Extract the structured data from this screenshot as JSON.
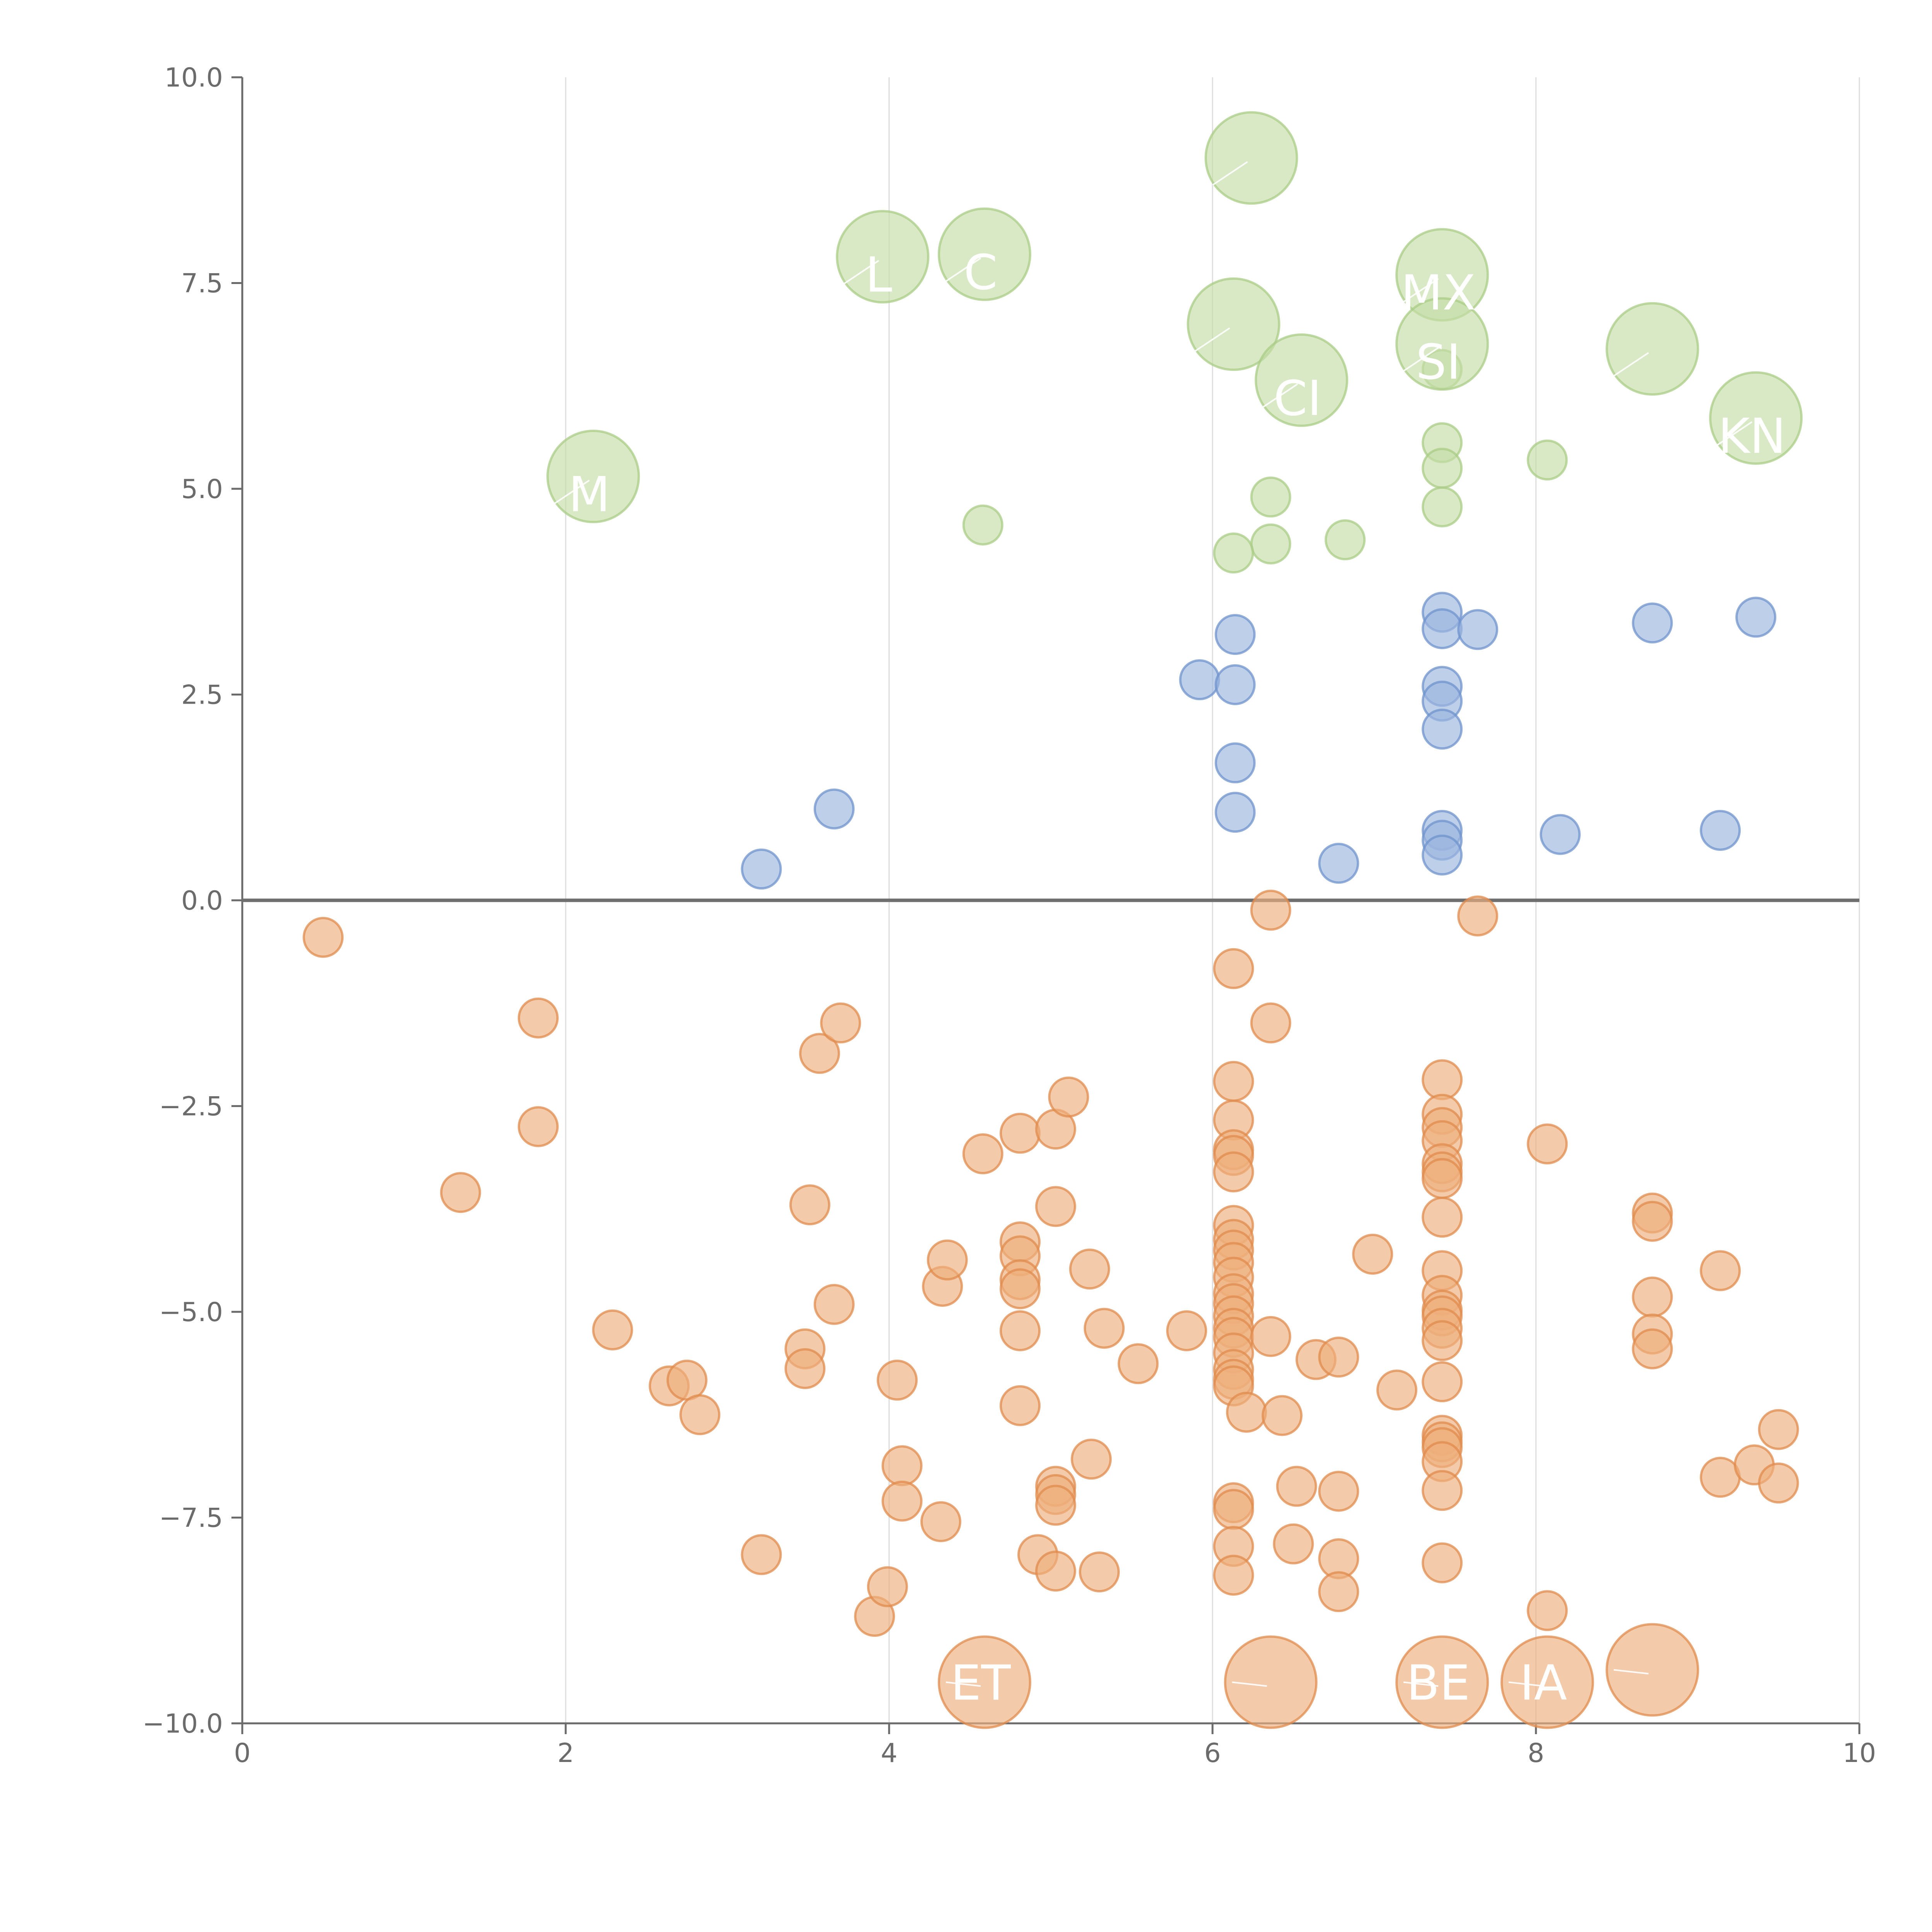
{
  "chart_data": {
    "type": "scatter",
    "title": "",
    "xlabel": "",
    "ylabel": "",
    "xlim": [
      0,
      10
    ],
    "ylim": [
      -10,
      10
    ],
    "x_ticks": [
      "0",
      "2",
      "4",
      "6",
      "8",
      "10"
    ],
    "y_ticks": [
      "−10.0",
      "−7.5",
      "−5.0",
      "−2.5",
      "0.0",
      "2.5",
      "5.0",
      "7.5",
      "10.0"
    ],
    "grid": "vertical",
    "legend": "none",
    "colors": {
      "green_fill": "#c5dda6",
      "green_stroke": "#a9cc86",
      "blue_fill": "#9bb5df",
      "blue_stroke": "#6f93cc",
      "orange_fill": "#eeaf7d",
      "orange_stroke": "#e08b4c",
      "axis": "#6b6b6b",
      "grid": "#dcdcdc",
      "zero_line": "#6f6f6f"
    },
    "series": [
      {
        "name": "green-small",
        "color": "green",
        "size": "small",
        "points": [
          [
            7.42,
            6.45
          ],
          [
            7.42,
            5.56
          ],
          [
            7.42,
            5.25
          ],
          [
            7.42,
            4.78
          ],
          [
            8.07,
            5.35
          ],
          [
            6.36,
            4.9
          ],
          [
            6.36,
            4.33
          ],
          [
            6.13,
            4.22
          ],
          [
            6.82,
            4.38
          ],
          [
            4.58,
            4.56
          ]
        ]
      },
      {
        "name": "green-large",
        "color": "green",
        "size": "large",
        "points": [
          [
            2.17,
            5.15
          ],
          [
            3.96,
            7.82
          ],
          [
            4.59,
            7.85
          ],
          [
            6.24,
            9.02
          ],
          [
            6.13,
            7.0
          ],
          [
            6.55,
            6.32
          ],
          [
            7.42,
            7.6
          ],
          [
            7.42,
            6.76
          ],
          [
            8.72,
            6.7
          ],
          [
            9.36,
            5.86
          ]
        ]
      },
      {
        "name": "blue",
        "color": "blue",
        "size": "small",
        "points": [
          [
            3.21,
            0.38
          ],
          [
            3.66,
            1.11
          ],
          [
            5.92,
            2.68
          ],
          [
            6.14,
            3.23
          ],
          [
            6.14,
            2.62
          ],
          [
            6.14,
            1.67
          ],
          [
            6.14,
            1.07
          ],
          [
            6.78,
            0.45
          ],
          [
            7.42,
            3.5
          ],
          [
            7.42,
            3.3
          ],
          [
            7.42,
            2.6
          ],
          [
            7.42,
            2.42
          ],
          [
            7.42,
            2.08
          ],
          [
            7.42,
            0.85
          ],
          [
            7.42,
            0.73
          ],
          [
            7.42,
            0.55
          ],
          [
            7.64,
            3.29
          ],
          [
            8.15,
            0.8
          ],
          [
            8.72,
            3.37
          ],
          [
            9.14,
            0.85
          ],
          [
            9.36,
            3.44
          ]
        ]
      },
      {
        "name": "orange-small",
        "color": "orange",
        "size": "small",
        "points": [
          [
            0.5,
            -0.45
          ],
          [
            1.35,
            -3.55
          ],
          [
            1.83,
            -1.43
          ],
          [
            1.83,
            -2.75
          ],
          [
            2.29,
            -5.22
          ],
          [
            2.64,
            -5.9
          ],
          [
            2.75,
            -5.83
          ],
          [
            2.83,
            -6.25
          ],
          [
            3.21,
            -7.95
          ],
          [
            3.48,
            -5.45
          ],
          [
            3.48,
            -5.69
          ],
          [
            3.51,
            -3.7
          ],
          [
            3.57,
            -1.86
          ],
          [
            3.66,
            -4.91
          ],
          [
            3.7,
            -1.49
          ],
          [
            3.91,
            -8.7
          ],
          [
            3.99,
            -8.34
          ],
          [
            4.05,
            -5.83
          ],
          [
            4.08,
            -6.87
          ],
          [
            4.08,
            -7.3
          ],
          [
            4.32,
            -7.55
          ],
          [
            4.33,
            -4.69
          ],
          [
            4.36,
            -4.37
          ],
          [
            4.58,
            -3.08
          ],
          [
            4.81,
            -2.83
          ],
          [
            4.81,
            -4.15
          ],
          [
            4.81,
            -4.32
          ],
          [
            4.81,
            -4.61
          ],
          [
            4.81,
            -4.72
          ],
          [
            4.81,
            -5.23
          ],
          [
            4.81,
            -6.14
          ],
          [
            4.92,
            -7.95
          ],
          [
            5.03,
            -2.78
          ],
          [
            5.03,
            -3.72
          ],
          [
            5.03,
            -7.12
          ],
          [
            5.03,
            -7.22
          ],
          [
            5.03,
            -7.35
          ],
          [
            5.03,
            -8.15
          ],
          [
            5.11,
            -2.39
          ],
          [
            5.24,
            -4.48
          ],
          [
            5.25,
            -6.79
          ],
          [
            5.3,
            -8.16
          ],
          [
            5.33,
            -5.2
          ],
          [
            5.54,
            -5.63
          ],
          [
            5.84,
            -5.23
          ],
          [
            6.13,
            -0.83
          ],
          [
            6.13,
            -2.2
          ],
          [
            6.13,
            -2.67
          ],
          [
            6.13,
            -3.03
          ],
          [
            6.13,
            -3.1
          ],
          [
            6.13,
            -3.3
          ],
          [
            6.13,
            -3.95
          ],
          [
            6.13,
            -4.12
          ],
          [
            6.13,
            -4.25
          ],
          [
            6.13,
            -4.4
          ],
          [
            6.13,
            -4.58
          ],
          [
            6.13,
            -4.78
          ],
          [
            6.13,
            -4.9
          ],
          [
            6.13,
            -5.05
          ],
          [
            6.13,
            -5.2
          ],
          [
            6.13,
            -5.31
          ],
          [
            6.13,
            -5.5
          ],
          [
            6.13,
            -5.7
          ],
          [
            6.13,
            -5.82
          ],
          [
            6.13,
            -5.9
          ],
          [
            6.13,
            -7.32
          ],
          [
            6.13,
            -7.4
          ],
          [
            6.13,
            -7.85
          ],
          [
            6.13,
            -8.2
          ],
          [
            6.21,
            -6.22
          ],
          [
            6.36,
            -0.12
          ],
          [
            6.36,
            -1.49
          ],
          [
            6.36,
            -5.3
          ],
          [
            6.43,
            -6.26
          ],
          [
            6.5,
            -7.82
          ],
          [
            6.52,
            -7.12
          ],
          [
            6.64,
            -5.58
          ],
          [
            6.78,
            -5.55
          ],
          [
            6.78,
            -7.18
          ],
          [
            6.78,
            -8.0
          ],
          [
            6.78,
            -8.4
          ],
          [
            6.99,
            -4.3
          ],
          [
            7.14,
            -5.95
          ],
          [
            7.42,
            -2.18
          ],
          [
            7.42,
            -2.6
          ],
          [
            7.42,
            -2.76
          ],
          [
            7.42,
            -2.92
          ],
          [
            7.42,
            -3.2
          ],
          [
            7.42,
            -3.3
          ],
          [
            7.42,
            -3.38
          ],
          [
            7.42,
            -3.85
          ],
          [
            7.42,
            -4.5
          ],
          [
            7.42,
            -4.8
          ],
          [
            7.42,
            -4.98
          ],
          [
            7.42,
            -5.05
          ],
          [
            7.42,
            -5.2
          ],
          [
            7.42,
            -5.35
          ],
          [
            7.42,
            -5.85
          ],
          [
            7.42,
            -6.5
          ],
          [
            7.42,
            -6.58
          ],
          [
            7.42,
            -6.65
          ],
          [
            7.42,
            -6.82
          ],
          [
            7.42,
            -7.17
          ],
          [
            7.42,
            -8.05
          ],
          [
            7.64,
            -0.19
          ],
          [
            8.07,
            -2.96
          ],
          [
            8.07,
            -8.63
          ],
          [
            8.72,
            -3.8
          ],
          [
            8.72,
            -3.9
          ],
          [
            8.72,
            -4.82
          ],
          [
            8.72,
            -5.27
          ],
          [
            8.72,
            -5.45
          ],
          [
            9.14,
            -4.5
          ],
          [
            9.14,
            -7.01
          ],
          [
            9.35,
            -6.86
          ],
          [
            9.5,
            -6.43
          ],
          [
            9.5,
            -7.08
          ]
        ]
      },
      {
        "name": "orange-large",
        "color": "orange",
        "size": "large",
        "points": [
          [
            4.59,
            -9.5
          ],
          [
            6.36,
            -9.5
          ],
          [
            7.42,
            -9.5
          ],
          [
            8.07,
            -9.5
          ],
          [
            8.72,
            -9.35
          ]
        ]
      }
    ],
    "labels": [
      {
        "text": "M",
        "x": 2.17,
        "y": 5.15
      },
      {
        "text": "L",
        "x": 3.96,
        "y": 7.82
      },
      {
        "text": "C",
        "x": 4.59,
        "y": 7.85
      },
      {
        "text": "",
        "x": 6.24,
        "y": 9.02
      },
      {
        "text": "",
        "x": 6.13,
        "y": 7.0
      },
      {
        "text": "CI",
        "x": 6.55,
        "y": 6.32
      },
      {
        "text": "MX",
        "x": 7.42,
        "y": 7.6
      },
      {
        "text": "SI",
        "x": 7.42,
        "y": 6.76
      },
      {
        "text": "",
        "x": 8.72,
        "y": 6.7
      },
      {
        "text": "KN",
        "x": 9.36,
        "y": 5.86
      },
      {
        "text": "ET",
        "x": 4.59,
        "y": -9.5
      },
      {
        "text": "",
        "x": 6.36,
        "y": -9.5
      },
      {
        "text": "BE",
        "x": 7.42,
        "y": -9.5
      },
      {
        "text": "IA",
        "x": 8.07,
        "y": -9.5
      },
      {
        "text": "",
        "x": 8.72,
        "y": -9.35
      }
    ]
  }
}
